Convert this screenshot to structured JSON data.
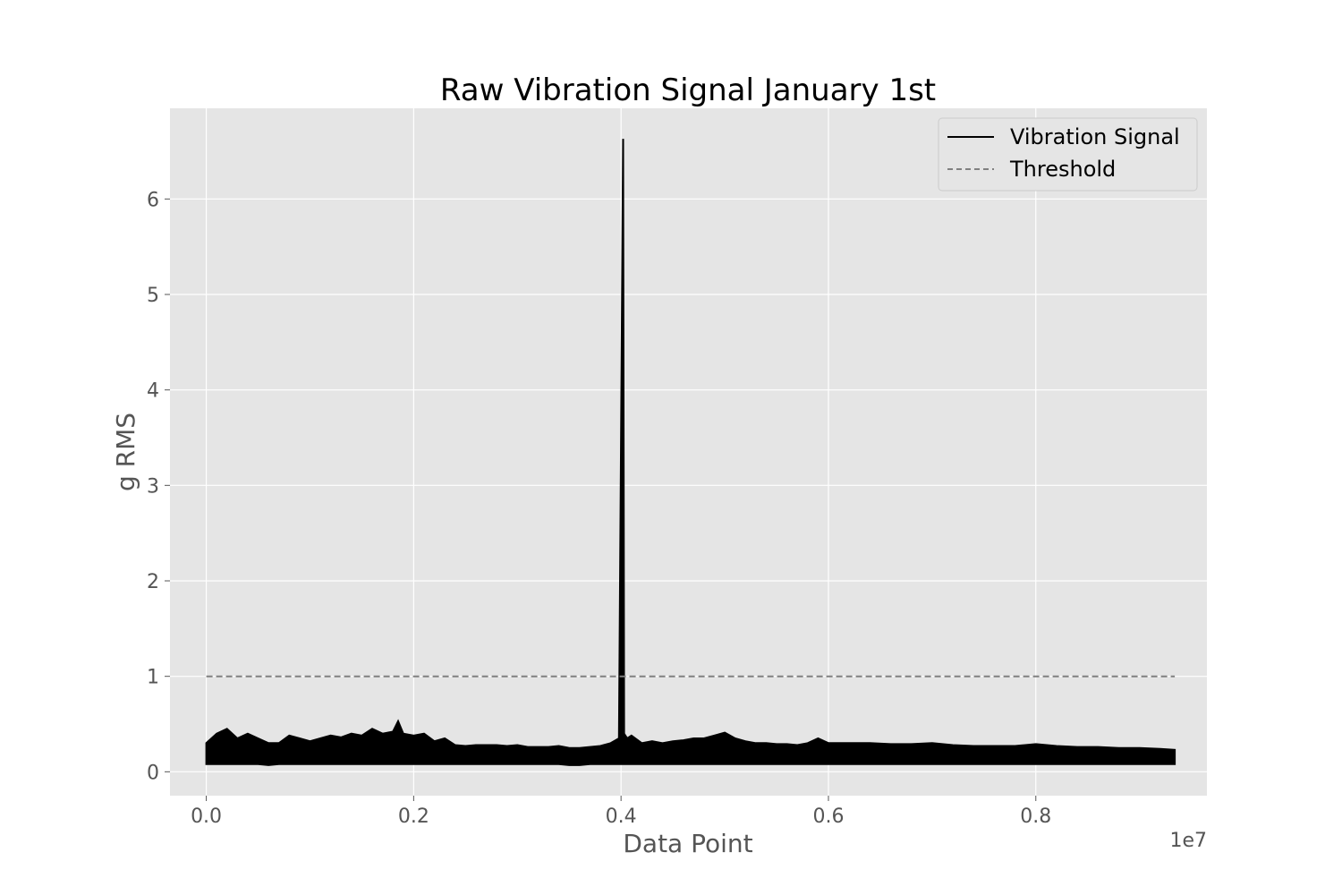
{
  "chart_data": {
    "type": "line",
    "title": "Raw Vibration Signal January 1st",
    "xlabel": "Data Point",
    "ylabel": "g RMS",
    "x_offset_label": "1e7",
    "xlim": [
      -350000,
      9650000
    ],
    "ylim": [
      -0.25,
      6.95
    ],
    "x_ticks": [
      0,
      2000000,
      4000000,
      6000000,
      8000000
    ],
    "x_tick_labels": [
      "0.0",
      "0.2",
      "0.4",
      "0.6",
      "0.8"
    ],
    "y_ticks": [
      0,
      1,
      2,
      3,
      4,
      5,
      6
    ],
    "y_tick_labels": [
      "0",
      "1",
      "2",
      "3",
      "4",
      "5",
      "6"
    ],
    "grid": true,
    "legend_position": "top-right",
    "series": [
      {
        "name": "Vibration Signal",
        "color": "#000000",
        "style": "solid",
        "x": [
          0,
          100000,
          200000,
          300000,
          400000,
          500000,
          600000,
          700000,
          800000,
          900000,
          1000000,
          1100000,
          1200000,
          1300000,
          1400000,
          1500000,
          1600000,
          1700000,
          1800000,
          1850000,
          1900000,
          2000000,
          2100000,
          2200000,
          2300000,
          2400000,
          2500000,
          2600000,
          2700000,
          2800000,
          2900000,
          3000000,
          3100000,
          3200000,
          3300000,
          3400000,
          3500000,
          3600000,
          3700000,
          3800000,
          3900000,
          3980000,
          4020000,
          4030000,
          4060000,
          4100000,
          4200000,
          4300000,
          4400000,
          4500000,
          4600000,
          4700000,
          4800000,
          4900000,
          5000000,
          5050000,
          5100000,
          5200000,
          5300000,
          5400000,
          5500000,
          5600000,
          5700000,
          5800000,
          5900000,
          6000000,
          6200000,
          6400000,
          6600000,
          6800000,
          7000000,
          7200000,
          7400000,
          7600000,
          7800000,
          8000000,
          8200000,
          8400000,
          8600000,
          8800000,
          9000000,
          9200000,
          9340000
        ],
        "y_max": [
          0.3,
          0.4,
          0.45,
          0.35,
          0.4,
          0.35,
          0.3,
          0.3,
          0.38,
          0.35,
          0.32,
          0.35,
          0.38,
          0.36,
          0.4,
          0.38,
          0.45,
          0.4,
          0.42,
          0.53,
          0.4,
          0.38,
          0.4,
          0.32,
          0.35,
          0.28,
          0.27,
          0.28,
          0.28,
          0.28,
          0.27,
          0.28,
          0.26,
          0.26,
          0.26,
          0.27,
          0.25,
          0.25,
          0.26,
          0.27,
          0.3,
          0.35,
          6.63,
          0.4,
          0.35,
          0.38,
          0.3,
          0.32,
          0.3,
          0.32,
          0.33,
          0.35,
          0.35,
          0.38,
          0.41,
          0.38,
          0.35,
          0.32,
          0.3,
          0.3,
          0.29,
          0.29,
          0.28,
          0.3,
          0.35,
          0.3,
          0.3,
          0.3,
          0.29,
          0.29,
          0.3,
          0.28,
          0.27,
          0.27,
          0.27,
          0.29,
          0.27,
          0.26,
          0.26,
          0.25,
          0.25,
          0.24,
          0.23
        ],
        "y_min": [
          0.08,
          0.08,
          0.08,
          0.08,
          0.08,
          0.08,
          0.07,
          0.08,
          0.08,
          0.08,
          0.08,
          0.08,
          0.08,
          0.08,
          0.08,
          0.08,
          0.08,
          0.08,
          0.08,
          0.08,
          0.08,
          0.08,
          0.08,
          0.08,
          0.08,
          0.08,
          0.08,
          0.08,
          0.08,
          0.08,
          0.08,
          0.08,
          0.08,
          0.08,
          0.08,
          0.08,
          0.07,
          0.07,
          0.08,
          0.08,
          0.08,
          0.08,
          0.08,
          0.08,
          0.08,
          0.08,
          0.08,
          0.08,
          0.08,
          0.08,
          0.08,
          0.08,
          0.08,
          0.08,
          0.08,
          0.08,
          0.08,
          0.08,
          0.08,
          0.08,
          0.08,
          0.08,
          0.08,
          0.08,
          0.08,
          0.08,
          0.08,
          0.08,
          0.08,
          0.08,
          0.08,
          0.08,
          0.08,
          0.08,
          0.08,
          0.08,
          0.08,
          0.08,
          0.08,
          0.08,
          0.08,
          0.08,
          0.08
        ]
      },
      {
        "name": "Threshold",
        "color": "#808080",
        "style": "dashed",
        "x": [
          0,
          9340000
        ],
        "y": [
          1,
          1
        ]
      }
    ]
  },
  "colors": {
    "plot_background": "#e5e5e5",
    "grid": "#ffffff",
    "signal": "#000000",
    "threshold": "#808080"
  }
}
